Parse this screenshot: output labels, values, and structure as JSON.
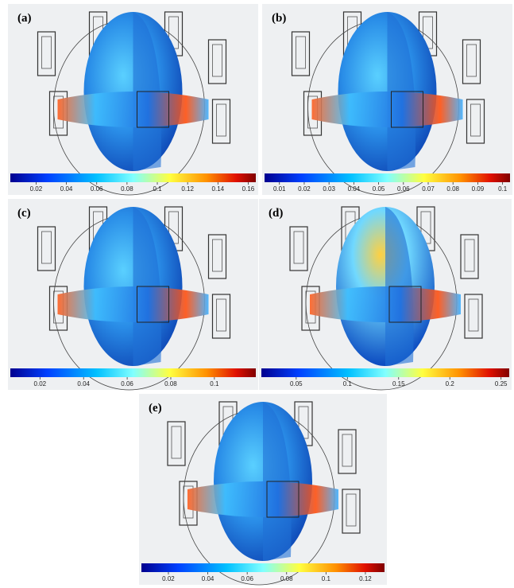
{
  "panels": [
    {
      "label": "(a)",
      "colorbar": {
        "lim": [
          0.003,
          0.165
        ],
        "ticks": [
          0.02,
          0.04,
          0.06,
          0.08,
          0.1,
          0.12,
          0.14,
          0.16
        ]
      }
    },
    {
      "label": "(b)",
      "colorbar": {
        "lim": [
          0.004,
          0.103
        ],
        "ticks": [
          0.01,
          0.02,
          0.03,
          0.04,
          0.05,
          0.06,
          0.07,
          0.08,
          0.09,
          0.1
        ]
      }
    },
    {
      "label": "(c)",
      "colorbar": {
        "lim": [
          0.0064,
          0.119
        ],
        "ticks": [
          0.02,
          0.04,
          0.06,
          0.08,
          0.1
        ]
      }
    },
    {
      "label": "(d)",
      "colorbar": {
        "lim": [
          0.016,
          0.258
        ],
        "ticks": [
          0.05,
          0.1,
          0.15,
          0.2,
          0.25
        ]
      }
    },
    {
      "label": "(e)",
      "colorbar": {
        "lim": [
          0.0063,
          0.1297
        ],
        "ticks": [
          0.02,
          0.04,
          0.06,
          0.08,
          0.1,
          0.12
        ]
      }
    }
  ]
}
